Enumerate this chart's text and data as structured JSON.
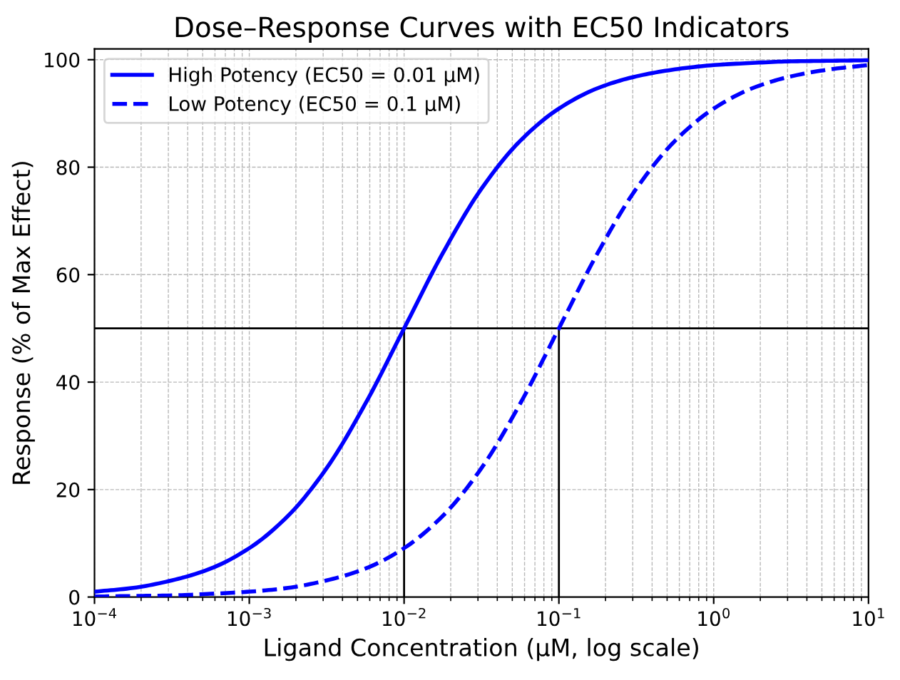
{
  "chart_data": {
    "type": "line",
    "title": "Dose–Response Curves with EC50 Indicators",
    "xlabel": "Ligand Concentration (μM, log scale)",
    "ylabel": "Response (% of Max Effect)",
    "log": "x",
    "xlim": [
      0.0001,
      10
    ],
    "ylim": [
      0,
      102
    ],
    "xticks": [
      {
        "value": 0.0001,
        "label": "10$^{−4}$"
      },
      {
        "value": 0.001,
        "label": "10$^{−3}$"
      },
      {
        "value": 0.01,
        "label": "10$^{−2}$"
      },
      {
        "value": 0.1,
        "label": "10$^{−1}$"
      },
      {
        "value": 1,
        "label": "10$^{0}$"
      },
      {
        "value": 10,
        "label": "10$^{1}$"
      }
    ],
    "yticks": [
      0,
      20,
      40,
      60,
      80,
      100
    ],
    "grid": true,
    "legend": "top left",
    "marker": "none",
    "x": [
      0.0001,
      0.00017783,
      0.00031623,
      0.00056234,
      0.001,
      0.0017783,
      0.0031623,
      0.0056234,
      0.01,
      0.017783,
      0.031623,
      0.056234,
      0.1,
      0.17783,
      0.31623,
      0.56234,
      1,
      1.7783,
      3.1623,
      5.6234,
      10
    ],
    "series": [
      {
        "name": "High Potency (EC50 = 0.01 μM)",
        "color": "#0000ff",
        "line_style": "solid",
        "values": [
          1.0,
          1.7,
          3.1,
          5.3,
          9.1,
          15.1,
          24.0,
          36.0,
          50,
          64.0,
          76.0,
          84.9,
          90.9,
          94.7,
          96.9,
          98.2,
          99.0,
          99.4,
          99.7,
          99.8,
          99.9
        ]
      },
      {
        "name": "Low Potency (EC50 = 0.1 μM)",
        "color": "#0000ff",
        "line_style": "dashed",
        "values": [
          0.1,
          0.2,
          0.3,
          0.6,
          1.0,
          1.7,
          3.1,
          5.3,
          9.1,
          15.1,
          24.0,
          36.0,
          50,
          64.0,
          76.0,
          84.9,
          90.9,
          94.7,
          96.9,
          98.2,
          99.0
        ]
      }
    ],
    "ref_lines": [
      {
        "axis": "y",
        "value": 50,
        "color": "#000000",
        "line_style": "solid"
      },
      {
        "axis": "x",
        "value": 0.01,
        "color": "#000000",
        "line_style": "solid"
      },
      {
        "axis": "x",
        "value": 0.1,
        "color": "#000000",
        "line_style": "solid"
      }
    ]
  }
}
